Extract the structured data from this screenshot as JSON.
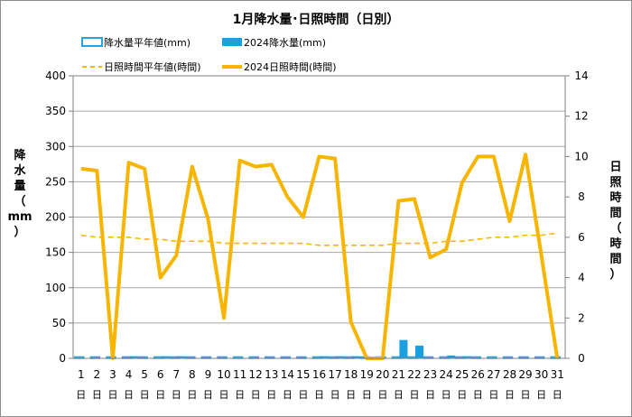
{
  "chart_data": {
    "type": "bar+line",
    "title": "1月降水量･日照時間（日別）",
    "colors": {
      "precip_normal": "#29a3dd",
      "precip_2024": "#1a9fe0",
      "sunshine_normal": "#f5b800",
      "sunshine_2024": "#f7b500",
      "grid": "#a6a6a6",
      "axis": "#808080"
    },
    "legend": {
      "precip_normal": "降水量平年値(mm)",
      "precip_2024": "2024降水量(mm)",
      "sunshine_normal": "日照時間平年値(時間)",
      "sunshine_2024": "2024日照時間(時間)"
    },
    "ylabel_left": [
      "降",
      "水",
      "量",
      "（",
      "mm",
      "）"
    ],
    "ylabel_right": [
      "日",
      "照",
      "時",
      "間",
      "（",
      "時",
      "間",
      "）"
    ],
    "y_left": {
      "min": 0,
      "max": 400,
      "ticks": [
        "0",
        "50",
        "100",
        "150",
        "200",
        "250",
        "300",
        "350",
        "400"
      ]
    },
    "y_right": {
      "min": 0,
      "max": 14,
      "ticks": [
        "0",
        "2",
        "4",
        "6",
        "8",
        "10",
        "12",
        "14"
      ]
    },
    "x_day_labels": [
      "1",
      "2",
      "3",
      "4",
      "5",
      "6",
      "7",
      "8",
      "9",
      "10",
      "11",
      "12",
      "13",
      "14",
      "15",
      "16",
      "17",
      "18",
      "19",
      "20",
      "21",
      "22",
      "23",
      "24",
      "25",
      "26",
      "27",
      "28",
      "29",
      "30",
      "31"
    ],
    "x_unit_label": "日",
    "precip_normal": [
      2,
      2,
      2,
      2,
      2,
      2,
      2,
      2,
      2,
      2,
      2,
      2,
      2,
      2,
      2,
      2,
      2,
      2,
      2,
      2,
      2,
      2,
      2,
      2,
      2,
      2,
      2,
      2,
      2,
      2,
      2
    ],
    "precip_2024": [
      0,
      0,
      0,
      3,
      0,
      3,
      3,
      0,
      0,
      0,
      0,
      0,
      0,
      0,
      0,
      3,
      3,
      3,
      0,
      0,
      26,
      18,
      0,
      4,
      3,
      0,
      0,
      0,
      0,
      0,
      0
    ],
    "sunshine_normal": [
      6.1,
      6.0,
      6.0,
      6.0,
      5.9,
      5.9,
      5.8,
      5.8,
      5.8,
      5.7,
      5.7,
      5.7,
      5.7,
      5.7,
      5.7,
      5.6,
      5.6,
      5.6,
      5.6,
      5.6,
      5.7,
      5.7,
      5.7,
      5.8,
      5.8,
      5.9,
      6.0,
      6.0,
      6.1,
      6.1,
      6.2
    ],
    "sunshine_2024": [
      9.4,
      9.3,
      0.0,
      9.7,
      9.4,
      4.0,
      5.1,
      9.5,
      6.9,
      2.0,
      9.8,
      9.5,
      9.6,
      8.0,
      7.0,
      10.0,
      9.9,
      1.8,
      0.0,
      0.0,
      7.8,
      7.9,
      5.0,
      5.4,
      8.7,
      10.0,
      10.0,
      6.8,
      10.1,
      5.1,
      0.0
    ]
  }
}
